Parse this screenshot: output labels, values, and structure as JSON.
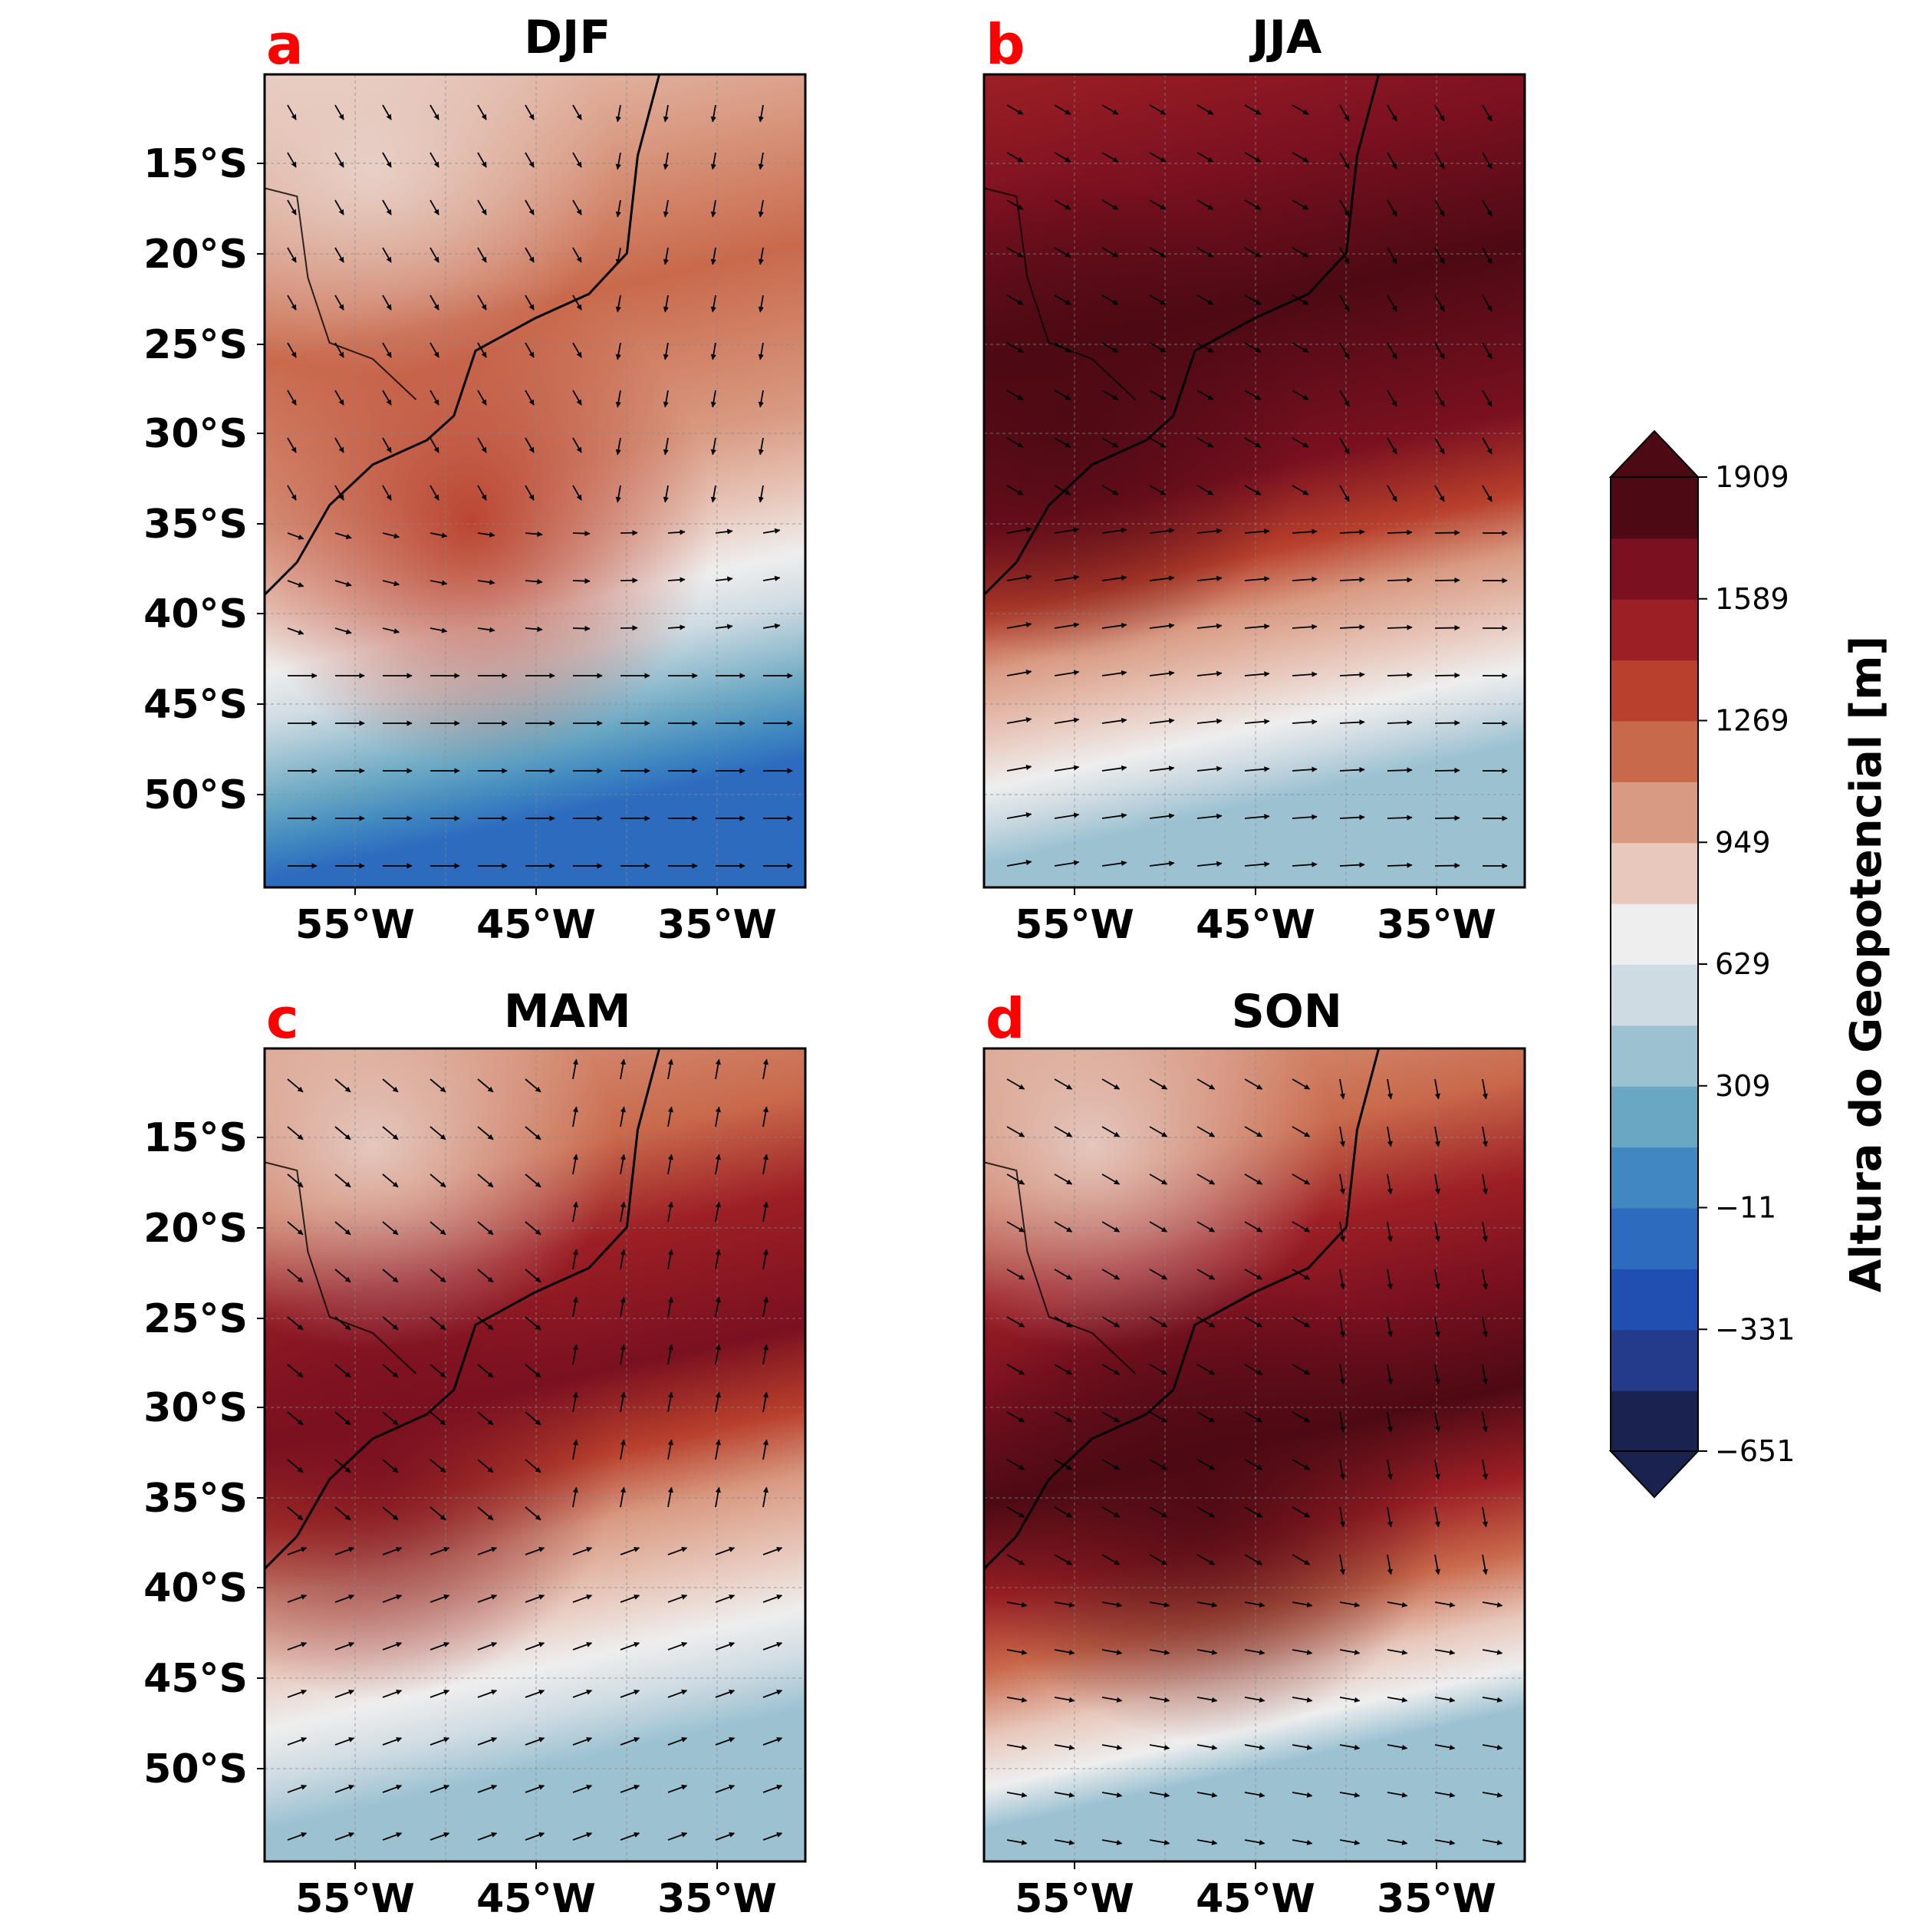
{
  "colors": {
    "scale": [
      "#1a2350",
      "#243a8a",
      "#1f4fb0",
      "#2d6bbf",
      "#3f88c0",
      "#6aa7c3",
      "#9cc2d2",
      "#cfdbe2",
      "#eeeeee",
      "#e8c8bc",
      "#d99a82",
      "#c9694b",
      "#b8402c",
      "#9c1f25",
      "#7a1020",
      "#4d0a14"
    ]
  },
  "panels": [
    {
      "id": "a",
      "letter": "a",
      "title": "DJF"
    },
    {
      "id": "b",
      "letter": "b",
      "title": "JJA"
    },
    {
      "id": "c",
      "letter": "c",
      "title": "MAM"
    },
    {
      "id": "d",
      "letter": "d",
      "title": "SON"
    }
  ],
  "axes": {
    "lat_labels": [
      "15°S",
      "20°S",
      "25°S",
      "30°S",
      "35°S",
      "40°S",
      "45°S",
      "50°S"
    ],
    "lon_labels": [
      "55°W",
      "45°W",
      "35°W"
    ]
  },
  "colorbar": {
    "label": "Altura do Geopotencial [m]",
    "ticks": [
      "1909",
      "1589",
      "1269",
      "949",
      "629",
      "309",
      "−11",
      "−331",
      "−651"
    ]
  }
}
